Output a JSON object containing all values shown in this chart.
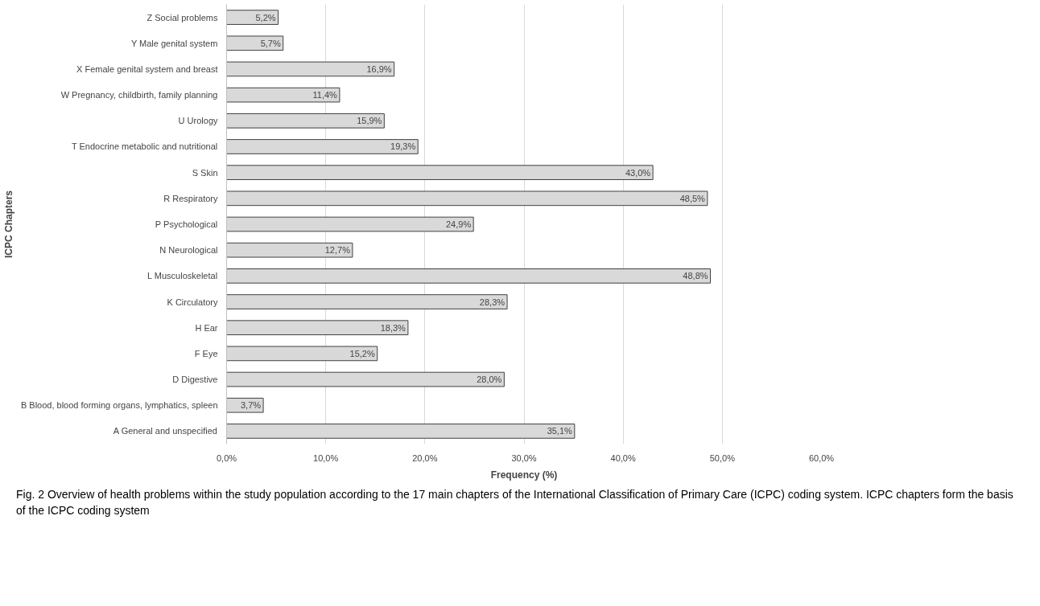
{
  "chart_data": {
    "type": "bar",
    "orientation": "horizontal",
    "xlabel": "Frequency (%)",
    "ylabel": "ICPC Chapters",
    "categories": [
      "Z Social problems",
      "Y Male genital system",
      "X Female genital system and breast",
      "W Pregnancy, childbirth, family planning",
      "U Urology",
      "T Endocrine metabolic and nutritional",
      "S Skin",
      "R Respiratory",
      "P Psychological",
      "N Neurological",
      "L Musculoskeletal",
      "K Circulatory",
      "H Ear",
      "F Eye",
      "D Digestive",
      "B Blood, blood forming organs, lymphatics, spleen",
      "A General and unspecified"
    ],
    "values": [
      5.2,
      5.7,
      16.9,
      11.4,
      15.9,
      19.3,
      43.0,
      48.5,
      24.9,
      12.7,
      48.8,
      28.3,
      18.3,
      15.2,
      28.0,
      3.7,
      35.1
    ],
    "value_labels": [
      "5,2%",
      "5,7%",
      "16,9%",
      "11,4%",
      "15,9%",
      "19,3%",
      "43,0%",
      "48,5%",
      "24,9%",
      "12,7%",
      "48,8%",
      "28,3%",
      "18,3%",
      "15,2%",
      "28,0%",
      "3,7%",
      "35,1%"
    ],
    "color": "#d9d9d9",
    "xlim": [
      0,
      60
    ],
    "xticks": [
      {
        "value": 0,
        "label": "0,0%"
      },
      {
        "value": 10,
        "label": "10,0%"
      },
      {
        "value": 20,
        "label": "20,0%"
      },
      {
        "value": 30,
        "label": "30,0%"
      },
      {
        "value": 40,
        "label": "40,0%"
      },
      {
        "value": 50,
        "label": "50,0%"
      },
      {
        "value": 60,
        "label": "60,0%"
      }
    ],
    "grid": "x",
    "annotations": [
      "Fig. 2 Overview of health problems within the study population according to the 17 main chapters of the International Classification of Primary Care (ICPC) coding system. ICPC chapters form the basis of the ICPC coding system"
    ]
  }
}
